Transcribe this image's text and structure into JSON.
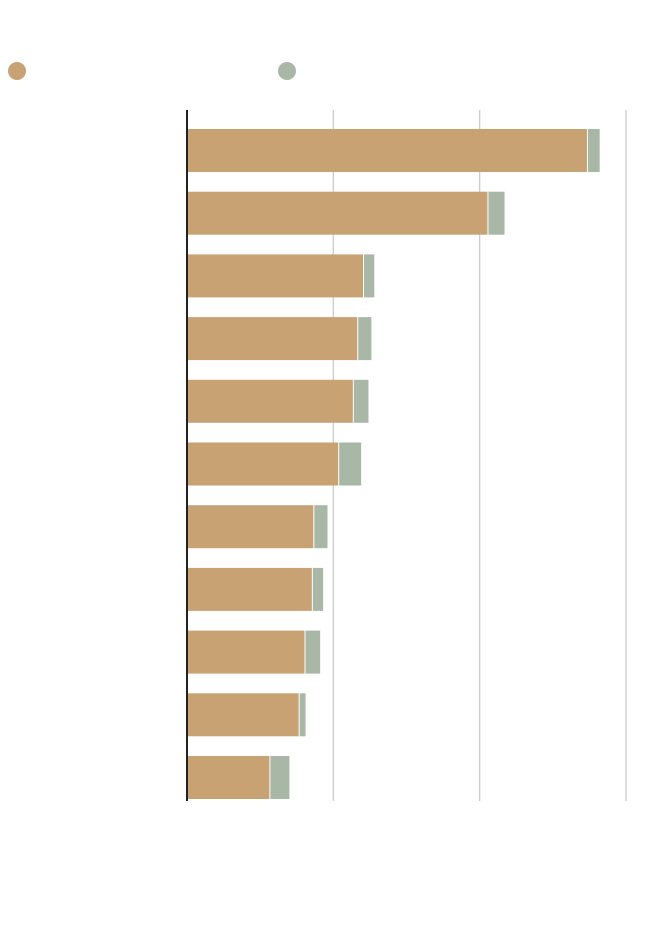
{
  "chart_data": {
    "type": "bar",
    "orientation": "horizontal",
    "stacked": true,
    "categories": [
      "",
      "",
      "",
      "",
      "",
      "",
      "",
      "",
      "",
      "",
      ""
    ],
    "series": [
      {
        "values": [
          137,
          103,
          60.5,
          58.5,
          57,
          52,
          43.5,
          43,
          40.5,
          38.5,
          28.5
        ]
      },
      {
        "values": [
          4,
          5.5,
          3.5,
          4.5,
          5,
          7.5,
          4.5,
          3.5,
          5,
          2,
          6.5
        ]
      }
    ],
    "xlim": [
      0,
      150
    ],
    "gridlines_x": [
      50,
      100,
      150
    ],
    "grid": true,
    "legend_position": "top-left",
    "colors": {
      "series_0": "#c9a274",
      "series_1": "#a9b8a6",
      "grid": "#cccccc",
      "axis": "#222222"
    }
  }
}
